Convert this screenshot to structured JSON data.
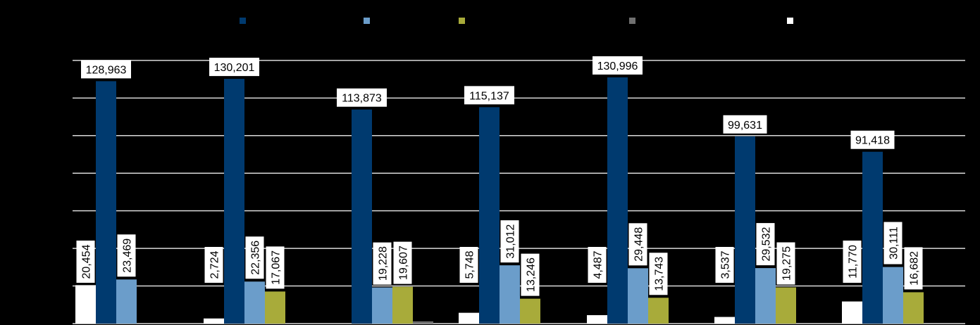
{
  "chart_data": {
    "type": "bar",
    "categories": [
      "",
      "",
      "",
      "",
      "",
      "",
      ""
    ],
    "series": [
      {
        "color": "#003A6F",
        "values": [
          null,
          null,
          null,
          null,
          null,
          null,
          null
        ]
      },
      {
        "color": "#003A6F",
        "values": [
          128963,
          130201,
          113873,
          115137,
          130996,
          99631,
          91418
        ]
      },
      {
        "color": "#6B9DCA",
        "values": [
          23469,
          22356,
          19228,
          31012,
          29448,
          29532,
          30111
        ]
      },
      {
        "color": "#A8AB3A",
        "values": [
          null,
          17067,
          19607,
          13246,
          13743,
          19275,
          16682
        ]
      },
      {
        "color": "#707070",
        "values": [
          null,
          null,
          1200,
          null,
          null,
          null,
          null
        ]
      },
      {
        "color": "#FFFFFF",
        "values": [
          20454,
          2724,
          null,
          5748,
          4487,
          3537,
          11770
        ]
      }
    ],
    "value_labels": [
      {
        "group": 0,
        "bar": "main",
        "text": "128,963"
      },
      {
        "group": 0,
        "bar": "light",
        "text": "23,469"
      },
      {
        "group": 0,
        "bar": "white",
        "text": "20,454"
      },
      {
        "group": 1,
        "bar": "main",
        "text": "130,201"
      },
      {
        "group": 1,
        "bar": "light",
        "text": "22,356"
      },
      {
        "group": 1,
        "bar": "olive",
        "text": "17,067"
      },
      {
        "group": 1,
        "bar": "white",
        "text": "2,724"
      },
      {
        "group": 2,
        "bar": "main",
        "text": "113,873"
      },
      {
        "group": 2,
        "bar": "light",
        "text": "19,228"
      },
      {
        "group": 2,
        "bar": "olive",
        "text": "19,607"
      },
      {
        "group": 3,
        "bar": "main",
        "text": "115,137"
      },
      {
        "group": 3,
        "bar": "light",
        "text": "31,012"
      },
      {
        "group": 3,
        "bar": "olive",
        "text": "13,246"
      },
      {
        "group": 3,
        "bar": "white",
        "text": "5,748"
      },
      {
        "group": 4,
        "bar": "main",
        "text": "130,996"
      },
      {
        "group": 4,
        "bar": "light",
        "text": "29,448"
      },
      {
        "group": 4,
        "bar": "olive",
        "text": "13,743"
      },
      {
        "group": 4,
        "bar": "white",
        "text": "4,487"
      },
      {
        "group": 5,
        "bar": "main",
        "text": "99,631"
      },
      {
        "group": 5,
        "bar": "light",
        "text": "29,532"
      },
      {
        "group": 5,
        "bar": "olive",
        "text": "19,275"
      },
      {
        "group": 5,
        "bar": "white",
        "text": "3,537"
      },
      {
        "group": 6,
        "bar": "main",
        "text": "91,418"
      },
      {
        "group": 6,
        "bar": "light",
        "text": "30,111"
      },
      {
        "group": 6,
        "bar": "olive",
        "text": "16,682"
      },
      {
        "group": 6,
        "bar": "white",
        "text": "11,770"
      }
    ],
    "legend_colors": [
      "#003A6F",
      "#6B9DCA",
      "#A8AB3A",
      "#707070",
      "#FFFFFF"
    ],
    "ylim": [
      0,
      140000
    ],
    "grid": true,
    "legend_position": "top",
    "background": "#000000"
  }
}
